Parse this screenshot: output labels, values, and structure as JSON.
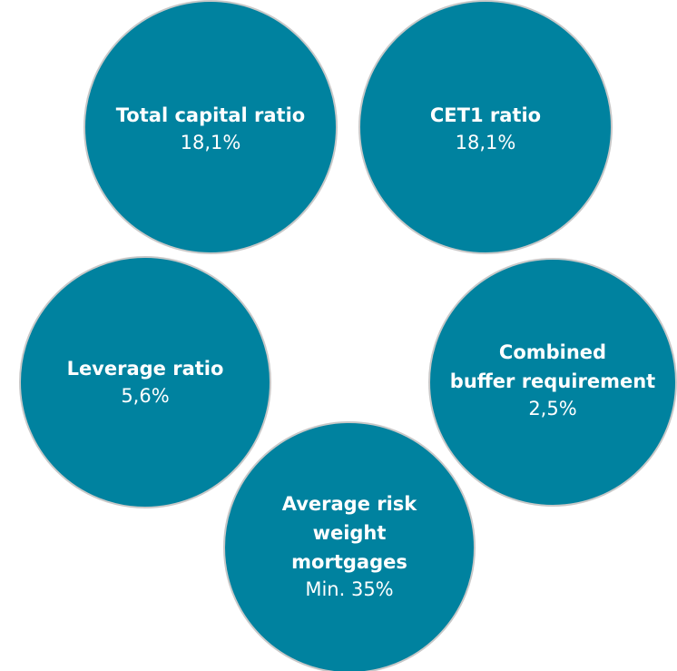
{
  "circles": [
    {
      "label_lines": [
        "Total capital ratio"
      ],
      "value": "18,1%"
    },
    {
      "label_lines": [
        "CET1 ratio"
      ],
      "value": "18,1%"
    },
    {
      "label_lines": [
        "Leverage ratio"
      ],
      "value": "5,6%"
    },
    {
      "label_lines": [
        "Combined",
        "buffer requirement"
      ],
      "value": "2,5%"
    },
    {
      "label_lines": [
        "Average risk",
        "weight",
        "mortgages"
      ],
      "value": "Min. 35%"
    }
  ]
}
